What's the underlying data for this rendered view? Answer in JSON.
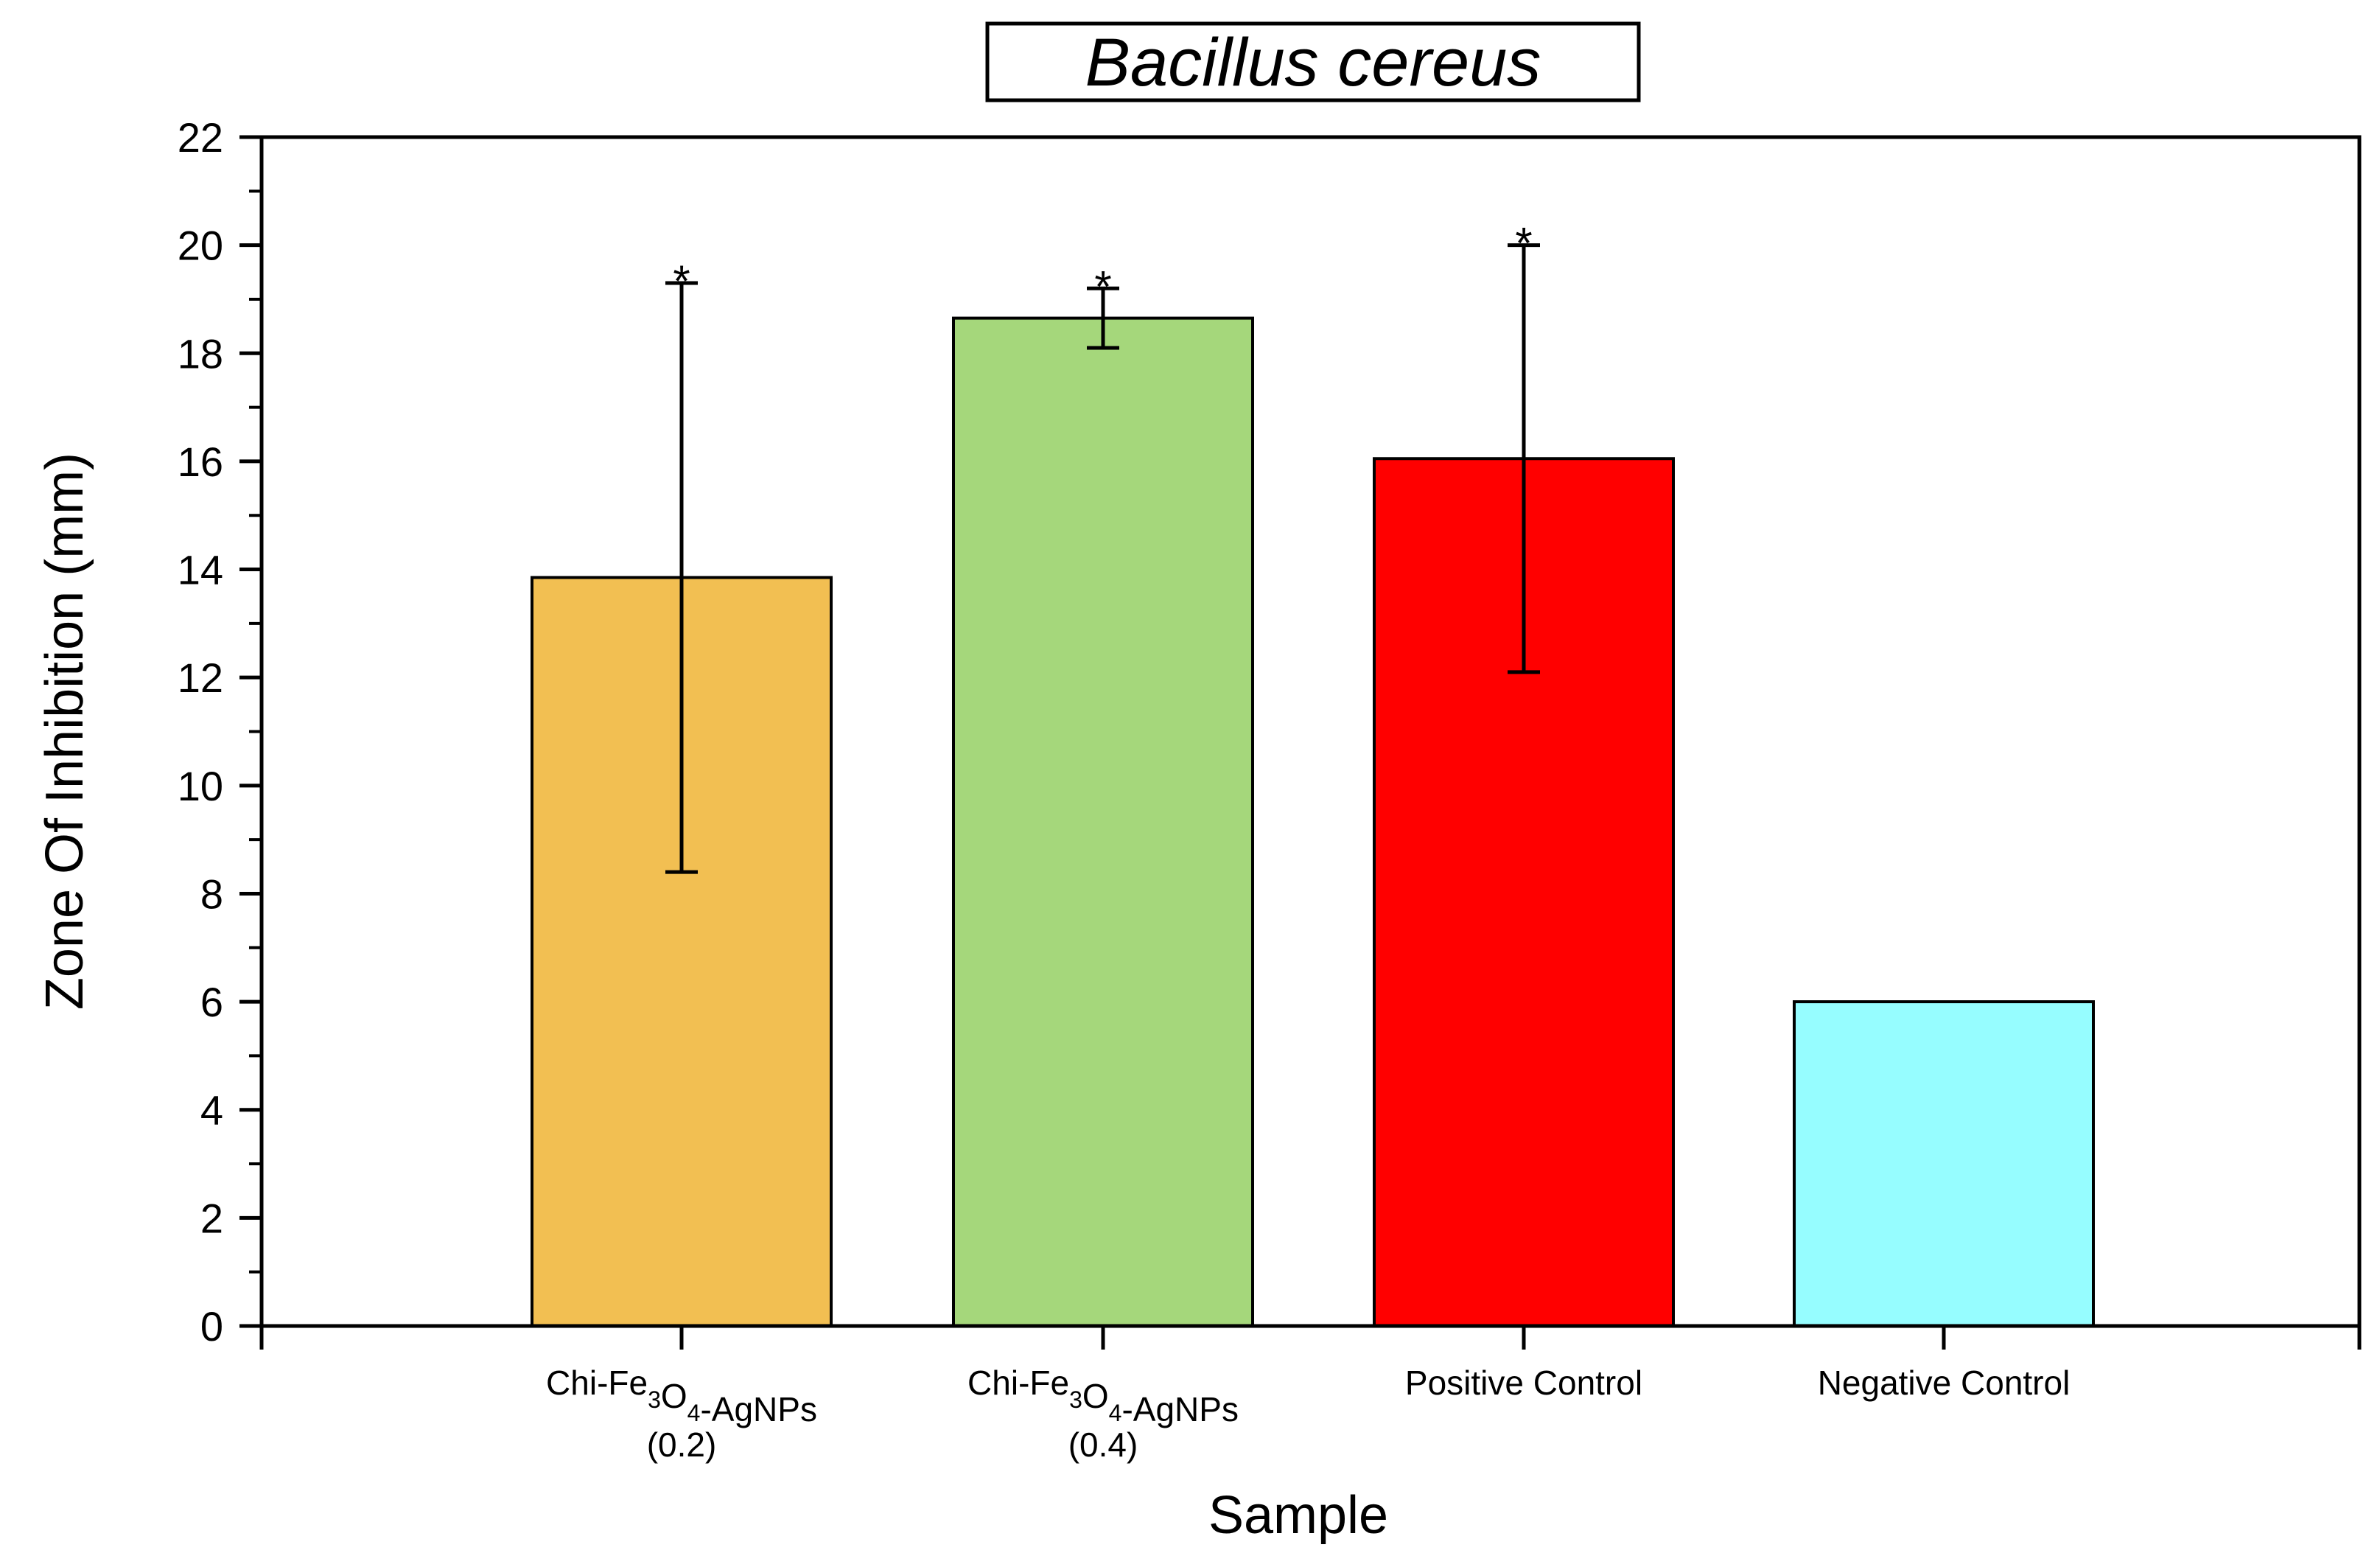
{
  "chart_data": {
    "type": "bar",
    "title": "Bacillus cereus",
    "xlabel": "Sample",
    "ylabel": "Zone Of Inhibition (mm)",
    "ylim": [
      0,
      22
    ],
    "yticks": [
      0,
      2,
      4,
      6,
      8,
      10,
      12,
      14,
      16,
      18,
      20,
      22
    ],
    "grid": false,
    "categories": [
      {
        "parts": [
          {
            "t": "Chi-Fe"
          },
          {
            "t": "3",
            "sub": true
          },
          {
            "t": "O"
          },
          {
            "t": "4",
            "sub": true
          },
          {
            "t": "-AgNPs"
          }
        ],
        "line2": "(0.2)"
      },
      {
        "parts": [
          {
            "t": "Chi-Fe"
          },
          {
            "t": "3",
            "sub": true
          },
          {
            "t": "O"
          },
          {
            "t": "4",
            "sub": true
          },
          {
            "t": "-AgNPs"
          }
        ],
        "line2": "(0.4)"
      },
      {
        "parts": [
          {
            "t": "Positive Control"
          }
        ],
        "line2": ""
      },
      {
        "parts": [
          {
            "t": "Negative Control"
          }
        ],
        "line2": ""
      }
    ],
    "values": [
      13.85,
      18.65,
      16.05,
      6.0
    ],
    "errors": [
      5.45,
      0.55,
      3.95,
      null
    ],
    "significance": [
      "*",
      "*",
      "*",
      ""
    ],
    "colors": [
      "#F2BF52",
      "#A5D77B",
      "#FF0000",
      "#96FDFF"
    ]
  }
}
